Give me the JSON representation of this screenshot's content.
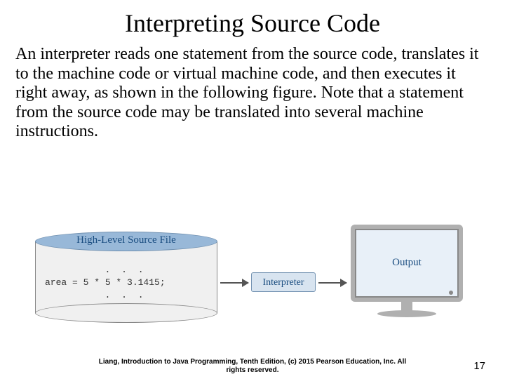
{
  "title": "Interpreting Source Code",
  "paragraph": "An interpreter reads one statement from the source code, translates it to the machine code or virtual machine code, and then executes it right away, as shown in the following figure. Note that a statement from the source code may be translated into several machine instructions.",
  "figure": {
    "source_file": {
      "label": "High-Level Source File",
      "code_line": "area = 5 * 5 * 3.1415;",
      "dots": ". . .",
      "top_fill": "#98b8d8",
      "body_fill": "#f0f0f0",
      "label_color": "#1a4d80"
    },
    "interpreter": {
      "label": "Interpreter",
      "fill": "#d8e4f0",
      "border": "#7090b0",
      "text_color": "#1a4d80"
    },
    "monitor": {
      "label": "Output",
      "frame_color": "#b0b0b0",
      "screen_fill": "#e8f0f8",
      "text_color": "#1a4d80"
    },
    "arrow_color": "#555555"
  },
  "footer": {
    "line1": "Liang, Introduction to Java Programming, Tenth Edition, (c) 2015 Pearson Education, Inc. All",
    "line2": "rights reserved."
  },
  "page_number": "17",
  "colors": {
    "background": "#ffffff",
    "text": "#000000"
  }
}
